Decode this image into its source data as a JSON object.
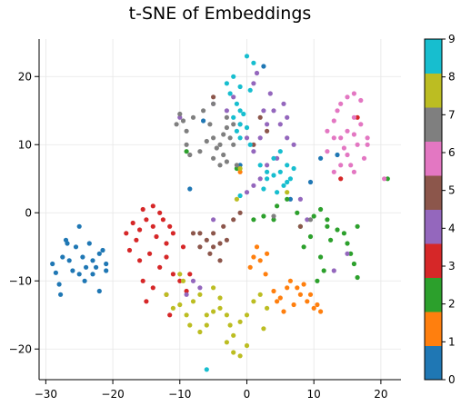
{
  "chart_data": {
    "type": "scatter",
    "title": "t-SNE of Embeddings",
    "xlabel": "",
    "ylabel": "",
    "xlim": [
      -31,
      23
    ],
    "ylim": [
      -24.5,
      25.5
    ],
    "xticks": [
      -30,
      -20,
      -10,
      0,
      10,
      20
    ],
    "yticks": [
      -20,
      -10,
      0,
      10,
      20
    ],
    "grid": true,
    "colorbar": {
      "range": [
        0,
        9
      ],
      "ticks": [
        0,
        1,
        2,
        3,
        4,
        5,
        6,
        7,
        8,
        9
      ],
      "colors": [
        "#1f77b4",
        "#ff7f0e",
        "#2ca02c",
        "#d62728",
        "#9467bd",
        "#8c564b",
        "#e377c2",
        "#7f7f7f",
        "#bcbd22",
        "#17becf"
      ]
    },
    "series": [
      {
        "label": 0,
        "points": [
          [
            -29,
            -7.5
          ],
          [
            -28.5,
            -8.8
          ],
          [
            -28,
            -10.5
          ],
          [
            -27.8,
            -12
          ],
          [
            -27.5,
            -6.5
          ],
          [
            -27,
            -4
          ],
          [
            -26.5,
            -7
          ],
          [
            -26,
            -8.5
          ],
          [
            -25.5,
            -5
          ],
          [
            -25,
            -2
          ],
          [
            -25,
            -9
          ],
          [
            -24.5,
            -6.5
          ],
          [
            -24,
            -8
          ],
          [
            -23.5,
            -4.5
          ],
          [
            -23,
            -9
          ],
          [
            -23,
            -7
          ],
          [
            -22.5,
            -8
          ],
          [
            -22,
            -6
          ],
          [
            -22,
            -11.5
          ],
          [
            -21.5,
            -5.5
          ],
          [
            -21,
            -7.5
          ],
          [
            -21,
            -8.5
          ],
          [
            -26.8,
            -4.5
          ],
          [
            -24.2,
            -10
          ],
          [
            -8.5,
            3.5
          ],
          [
            -6.5,
            13.5
          ],
          [
            2.5,
            21.5
          ],
          [
            9.5,
            4.5
          ],
          [
            11,
            8
          ],
          [
            13.5,
            8.5
          ],
          [
            -1,
            7
          ],
          [
            6.5,
            2
          ]
        ]
      },
      {
        "label": 1,
        "points": [
          [
            1,
            -6.5
          ],
          [
            2,
            -7
          ],
          [
            0.5,
            -8
          ],
          [
            2.8,
            -9
          ],
          [
            1.5,
            -5
          ],
          [
            3,
            -6
          ],
          [
            4,
            -11.5
          ],
          [
            5,
            -12.5
          ],
          [
            6,
            -11
          ],
          [
            7,
            -13.5
          ],
          [
            8,
            -12
          ],
          [
            9,
            -13
          ],
          [
            10,
            -14
          ],
          [
            6.5,
            -10
          ],
          [
            7.5,
            -11
          ],
          [
            8.5,
            -10.5
          ],
          [
            4.5,
            -13
          ],
          [
            5.5,
            -14.5
          ],
          [
            9.5,
            -12
          ],
          [
            10.5,
            -13.5
          ],
          [
            11,
            -14.5
          ],
          [
            -1,
            6
          ]
        ]
      },
      {
        "label": 2,
        "points": [
          [
            1,
            -1
          ],
          [
            2.5,
            -0.5
          ],
          [
            4,
            -1
          ],
          [
            4.5,
            1
          ],
          [
            6,
            2
          ],
          [
            7.5,
            0
          ],
          [
            8,
            -2
          ],
          [
            8.5,
            -5
          ],
          [
            9.5,
            -3.5
          ],
          [
            10,
            -0.5
          ],
          [
            11,
            0.5
          ],
          [
            12,
            -1
          ],
          [
            12,
            -2
          ],
          [
            12.5,
            -4
          ],
          [
            13.5,
            -2.5
          ],
          [
            14.5,
            -3
          ],
          [
            15,
            -4.5
          ],
          [
            15.5,
            -6
          ],
          [
            16,
            -7.5
          ],
          [
            16.5,
            -9.5
          ],
          [
            11,
            -6.5
          ],
          [
            11.5,
            -8.5
          ],
          [
            10.5,
            -10
          ],
          [
            16.5,
            -2
          ],
          [
            21,
            5
          ],
          [
            -1.5,
            6.5
          ],
          [
            -9,
            9
          ]
        ]
      },
      {
        "label": 3,
        "points": [
          [
            -18,
            -3
          ],
          [
            -17,
            -1.5
          ],
          [
            -16,
            -2.5
          ],
          [
            -15,
            -1
          ],
          [
            -14,
            -2
          ],
          [
            -13,
            0
          ],
          [
            -12.5,
            -1
          ],
          [
            -11.5,
            -2
          ],
          [
            -15.5,
            0.5
          ],
          [
            -14,
            1
          ],
          [
            -13.5,
            -3.5
          ],
          [
            -12,
            -4.5
          ],
          [
            -11,
            -3
          ],
          [
            -17.5,
            -5.5
          ],
          [
            -16,
            -7
          ],
          [
            -14.5,
            -6
          ],
          [
            -13,
            -8
          ],
          [
            -12,
            -6.5
          ],
          [
            -11,
            -9
          ],
          [
            -10,
            -10
          ],
          [
            -9,
            -11.5
          ],
          [
            -15.5,
            -10
          ],
          [
            -15,
            -13
          ],
          [
            -12,
            -12
          ],
          [
            -14,
            -11
          ],
          [
            -8.5,
            -9
          ],
          [
            -16.5,
            -4
          ],
          [
            -11.5,
            -15
          ],
          [
            -9.5,
            -5
          ],
          [
            14,
            5
          ],
          [
            16.5,
            14
          ]
        ]
      },
      {
        "label": 4,
        "points": [
          [
            1,
            19
          ],
          [
            1.5,
            20.5
          ],
          [
            -3,
            15
          ],
          [
            -5,
            16
          ],
          [
            -1,
            13
          ],
          [
            0,
            11
          ],
          [
            1,
            9
          ],
          [
            2,
            11
          ],
          [
            3,
            13
          ],
          [
            4,
            15
          ],
          [
            5,
            13
          ],
          [
            6,
            11
          ],
          [
            7,
            10
          ],
          [
            4.5,
            8
          ],
          [
            3,
            7
          ],
          [
            2,
            5
          ],
          [
            1,
            4
          ],
          [
            0,
            3
          ],
          [
            5.5,
            16
          ],
          [
            3.5,
            17.5
          ],
          [
            2.5,
            15
          ],
          [
            6,
            14
          ],
          [
            -2,
            17
          ],
          [
            8,
            2
          ],
          [
            9,
            -1
          ],
          [
            13,
            -8.5
          ],
          [
            15,
            -6
          ],
          [
            -9,
            -12
          ],
          [
            -8,
            -10
          ],
          [
            -7,
            -11
          ],
          [
            -10,
            14
          ],
          [
            -5,
            -1
          ]
        ]
      },
      {
        "label": 5,
        "points": [
          [
            -7,
            -3
          ],
          [
            -6,
            -4
          ],
          [
            -5,
            -3
          ],
          [
            -5,
            -5
          ],
          [
            -4,
            -4.5
          ],
          [
            -3.5,
            -2
          ],
          [
            -3,
            -4
          ],
          [
            -5.5,
            -6
          ],
          [
            -7,
            -5
          ],
          [
            -4,
            -7
          ],
          [
            -8,
            -3
          ],
          [
            -2,
            -1
          ],
          [
            -5,
            17
          ],
          [
            1,
            10
          ],
          [
            2,
            14
          ],
          [
            3,
            12
          ],
          [
            8,
            -2
          ],
          [
            -1,
            0
          ]
        ]
      },
      {
        "label": 6,
        "points": [
          [
            12,
            12
          ],
          [
            13,
            13.5
          ],
          [
            14,
            11
          ],
          [
            15,
            12
          ],
          [
            16,
            14
          ],
          [
            17,
            13
          ],
          [
            18,
            10
          ],
          [
            16.5,
            10
          ],
          [
            15,
            8.5
          ],
          [
            14,
            7
          ],
          [
            13,
            6
          ],
          [
            16,
            6
          ],
          [
            17.5,
            8
          ],
          [
            13.5,
            15
          ],
          [
            14,
            16
          ],
          [
            15,
            17
          ],
          [
            16,
            17.5
          ],
          [
            17,
            16.5
          ],
          [
            12,
            9
          ],
          [
            14.5,
            9.5
          ],
          [
            15.5,
            7
          ],
          [
            18,
            11
          ],
          [
            13,
            11
          ],
          [
            16,
            11.5
          ],
          [
            20.5,
            5
          ]
        ]
      },
      {
        "label": 7,
        "points": [
          [
            -10,
            14.5
          ],
          [
            -9.5,
            13.5
          ],
          [
            -9,
            12
          ],
          [
            -9,
            10
          ],
          [
            -8.5,
            8.5
          ],
          [
            -5,
            16
          ],
          [
            -5.5,
            13
          ],
          [
            -5,
            11
          ],
          [
            -4,
            10
          ],
          [
            -3.5,
            11.5
          ],
          [
            -3,
            12.5
          ],
          [
            -3,
            14
          ],
          [
            -2,
            13
          ],
          [
            -2,
            10
          ],
          [
            -5,
            8
          ],
          [
            -4.5,
            9.5
          ],
          [
            -3.5,
            8.5
          ],
          [
            -1.5,
            7
          ],
          [
            -8,
            14
          ],
          [
            -7,
            9
          ],
          [
            -6.5,
            15
          ],
          [
            -6,
            10.5
          ],
          [
            -4,
            7
          ],
          [
            -10.5,
            13
          ],
          [
            4,
            -0.5
          ],
          [
            9.5,
            -1
          ],
          [
            -3,
            7.5
          ],
          [
            -2.5,
            11
          ]
        ]
      },
      {
        "label": 8,
        "points": [
          [
            -12,
            -12
          ],
          [
            -11,
            -14
          ],
          [
            -10,
            -13.5
          ],
          [
            -9,
            -15
          ],
          [
            -8,
            -13
          ],
          [
            -7,
            -12
          ],
          [
            -9.5,
            -10
          ],
          [
            -8.5,
            -16.5
          ],
          [
            -6,
            -15
          ],
          [
            -5,
            -14.5
          ],
          [
            -4,
            -14
          ],
          [
            -3,
            -15
          ],
          [
            -2.5,
            -16.5
          ],
          [
            -2,
            -18
          ],
          [
            -3,
            -19
          ],
          [
            -2,
            -20.5
          ],
          [
            -1,
            -16
          ],
          [
            0,
            -15
          ],
          [
            0,
            -19.5
          ],
          [
            -1,
            -21
          ],
          [
            1,
            -13
          ],
          [
            2,
            -12
          ],
          [
            3,
            -14
          ],
          [
            2.5,
            -17
          ],
          [
            -5,
            -11
          ],
          [
            -4,
            -12.5
          ],
          [
            -6,
            -16.5
          ],
          [
            -7,
            -17.5
          ],
          [
            -1,
            6.5
          ],
          [
            -1.5,
            2
          ],
          [
            6,
            3
          ],
          [
            -10,
            -9
          ]
        ]
      },
      {
        "label": 9,
        "points": [
          [
            0,
            23
          ],
          [
            1,
            22
          ],
          [
            -2,
            20
          ],
          [
            -1,
            18.5
          ],
          [
            0.5,
            18
          ],
          [
            -2.5,
            17.5
          ],
          [
            -1.5,
            16
          ],
          [
            -1,
            15
          ],
          [
            -0.5,
            14.5
          ],
          [
            -2,
            14
          ],
          [
            -1,
            13
          ],
          [
            0,
            12.5
          ],
          [
            -1,
            11
          ],
          [
            0.5,
            10
          ],
          [
            2,
            7
          ],
          [
            3,
            6
          ],
          [
            4,
            5.5
          ],
          [
            5,
            6
          ],
          [
            6,
            7
          ],
          [
            6.5,
            5
          ],
          [
            7,
            6.5
          ],
          [
            5.5,
            4
          ],
          [
            4.5,
            3
          ],
          [
            3,
            5
          ],
          [
            2.5,
            3.5
          ],
          [
            4,
            8
          ],
          [
            5,
            9
          ],
          [
            -3,
            19
          ],
          [
            -1.5,
            12
          ],
          [
            6,
            4.5
          ],
          [
            -1,
            2.5
          ],
          [
            -6,
            -23
          ]
        ]
      }
    ]
  }
}
